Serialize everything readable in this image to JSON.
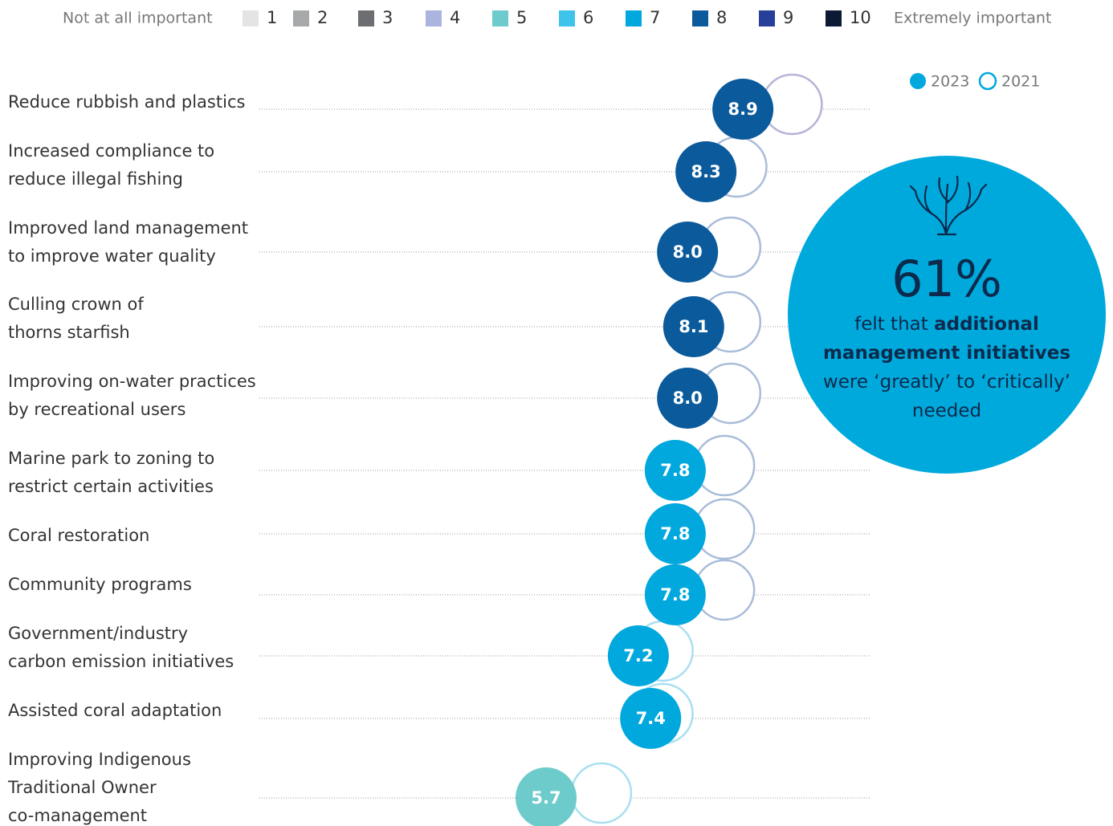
{
  "chart_data": {
    "type": "dot",
    "scale_legend": {
      "low_label": "Not at all important",
      "high_label": "Extremely important",
      "levels": [
        1,
        2,
        3,
        4,
        5,
        6,
        7,
        8,
        9,
        10
      ],
      "colors": [
        "#e4e4e5",
        "#a7a8aa",
        "#6d6e71",
        "#aab4de",
        "#6ecbcc",
        "#3ec4ea",
        "#00a8dd",
        "#0a5a9c",
        "#263f98",
        "#0c1a33"
      ]
    },
    "categories": [
      [
        "Reduce rubbish and plastics"
      ],
      [
        "Increased compliance to",
        "reduce illegal fishing"
      ],
      [
        "Improved land management",
        "to improve water quality"
      ],
      [
        "Culling crown of",
        "thorns starfish"
      ],
      [
        "Improving on-water practices",
        "by recreational users"
      ],
      [
        "Marine park to zoning to",
        "restrict certain activities"
      ],
      [
        "Coral restoration"
      ],
      [
        "Community programs"
      ],
      [
        "Government/industry",
        "carbon emission initiatives"
      ],
      [
        "Assisted coral adaptation"
      ],
      [
        "Improving Indigenous",
        "Traditional Owner",
        "co-management"
      ]
    ],
    "series": [
      {
        "name": "2023",
        "values": [
          8.9,
          8.3,
          8.0,
          8.1,
          8.0,
          7.8,
          7.8,
          7.8,
          7.2,
          7.4,
          5.7
        ],
        "value_labels": [
          "8.9",
          "8.3",
          "8.0",
          "8.1",
          "8.0",
          "7.8",
          "7.8",
          "7.8",
          "7.2",
          "7.4",
          "5.7"
        ],
        "colors": [
          "#0a5a9c",
          "#0a5a9c",
          "#0a5a9c",
          "#0a5a9c",
          "#0a5a9c",
          "#00a8dd",
          "#00a8dd",
          "#00a8dd",
          "#00a8dd",
          "#00a8dd",
          "#6ecbcc"
        ],
        "legend_color": "#00a8dd"
      },
      {
        "name": "2021",
        "values": [
          9.7,
          8.8,
          8.7,
          8.7,
          8.7,
          8.6,
          8.6,
          8.6,
          7.6,
          7.6,
          6.6
        ],
        "colors": [
          "#b7b3d8",
          "#a9bcd9",
          "#a9bcd9",
          "#a9bcd9",
          "#a9bcd9",
          "#a9bcd9",
          "#a9bcd9",
          "#a9bcd9",
          "#a9dff0",
          "#a9dff0",
          "#a9dff0"
        ],
        "legend_color": "#00a8dd"
      }
    ],
    "callout": {
      "stat": "61%",
      "text_before": "felt that",
      "text_bold": "additional management initiatives",
      "text_after": "were ‘greatly’ to ‘critically’ needed"
    }
  }
}
